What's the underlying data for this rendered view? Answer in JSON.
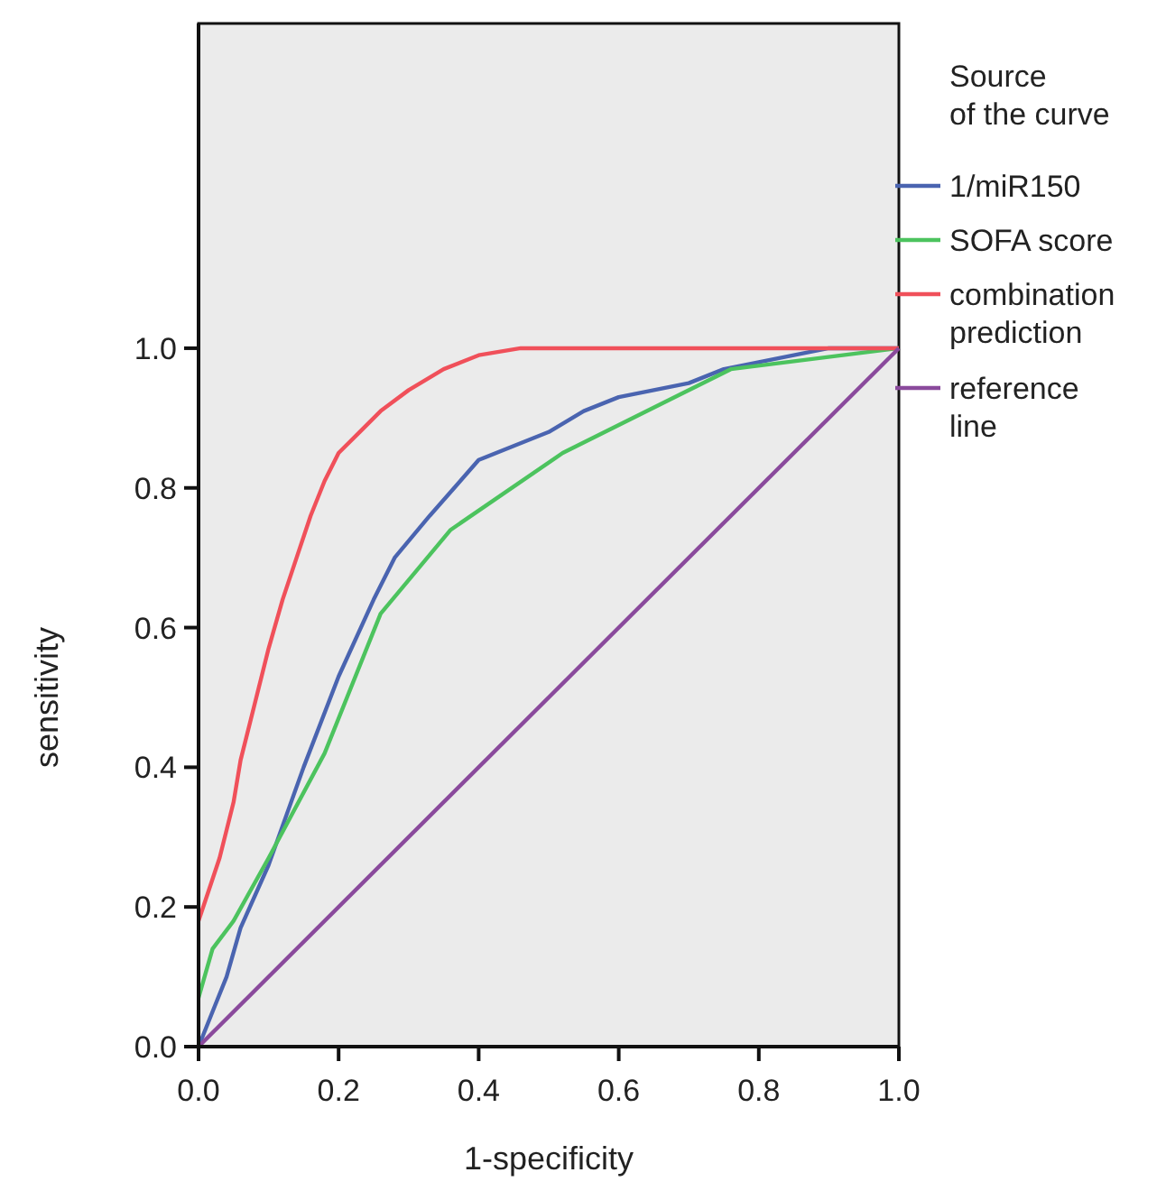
{
  "chart_data": {
    "type": "line",
    "xlabel": "1-specificity",
    "ylabel": "sensitivity",
    "legend_title": "Source of the curve",
    "legend": "right",
    "grid": false,
    "line_style": "solid",
    "xlim": [
      0,
      1
    ],
    "ylim": [
      0,
      1.465
    ],
    "xticks": [
      {
        "value": 0,
        "label": "0.0"
      },
      {
        "value": 0.2,
        "label": "0.2"
      },
      {
        "value": 0.4,
        "label": "0.4"
      },
      {
        "value": 0.6,
        "label": "0.6"
      },
      {
        "value": 0.8,
        "label": "0.8"
      },
      {
        "value": 1,
        "label": "1.0"
      }
    ],
    "yticks": [
      {
        "value": 0,
        "label": "0.0"
      },
      {
        "value": 0.2,
        "label": "0.2"
      },
      {
        "value": 0.4,
        "label": "0.4"
      },
      {
        "value": 0.6,
        "label": "0.6"
      },
      {
        "value": 0.8,
        "label": "0.8"
      },
      {
        "value": 1,
        "label": "1.0"
      }
    ],
    "series": [
      {
        "name": "1/miR150",
        "color": "#4a64b0",
        "x": [
          0,
          0.02,
          0.04,
          0.06,
          0.1,
          0.15,
          0.2,
          0.25,
          0.28,
          0.33,
          0.4,
          0.45,
          0.5,
          0.55,
          0.6,
          0.65,
          0.7,
          0.75,
          0.8,
          0.85,
          0.9,
          1
        ],
        "values": [
          0,
          0.05,
          0.1,
          0.17,
          0.26,
          0.4,
          0.53,
          0.64,
          0.7,
          0.76,
          0.84,
          0.86,
          0.88,
          0.91,
          0.93,
          0.94,
          0.95,
          0.97,
          0.98,
          0.99,
          1,
          1
        ]
      },
      {
        "name": "SOFA score",
        "color": "#4cc35e",
        "x": [
          0,
          0.02,
          0.05,
          0.1,
          0.18,
          0.26,
          0.36,
          0.52,
          0.76,
          1
        ],
        "values": [
          0.07,
          0.14,
          0.18,
          0.27,
          0.42,
          0.62,
          0.74,
          0.85,
          0.97,
          1
        ]
      },
      {
        "name": "combination prediction",
        "color": "#f0505a",
        "x": [
          0,
          0.01,
          0.03,
          0.05,
          0.06,
          0.08,
          0.1,
          0.12,
          0.14,
          0.16,
          0.18,
          0.2,
          0.23,
          0.26,
          0.3,
          0.35,
          0.4,
          0.46,
          1
        ],
        "values": [
          0.18,
          0.21,
          0.27,
          0.35,
          0.41,
          0.49,
          0.57,
          0.64,
          0.7,
          0.76,
          0.81,
          0.85,
          0.88,
          0.91,
          0.94,
          0.97,
          0.99,
          1,
          1
        ]
      },
      {
        "name": "reference line",
        "color": "#8a4a9c",
        "x": [
          0,
          1
        ],
        "values": [
          0,
          1
        ]
      }
    ]
  }
}
